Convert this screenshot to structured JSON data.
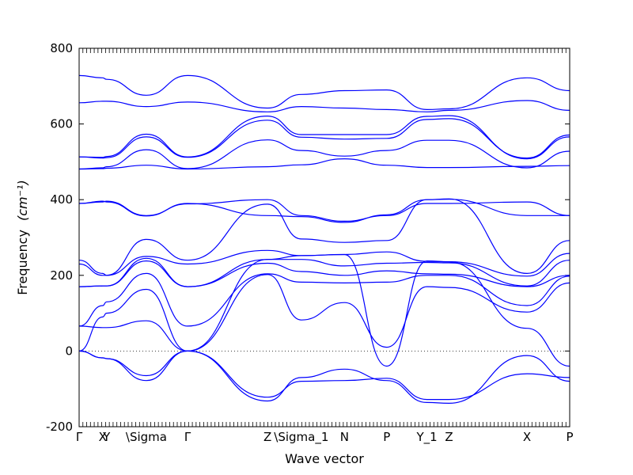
{
  "chart_data": {
    "type": "line",
    "xlabel": "Wave vector",
    "ylabel": "Frequency",
    "ylabel_unit": "(cm⁻¹)",
    "ylim": [
      -200,
      800
    ],
    "yticks": [
      -200,
      0,
      200,
      400,
      600,
      800
    ],
    "xlim": [
      0,
      100
    ],
    "xticks": [
      {
        "label": "Γ",
        "pos": 0
      },
      {
        "label": "X",
        "pos": 4.8
      },
      {
        "label": "Y",
        "pos": 5.6
      },
      {
        "label": "\\Sigma",
        "pos": 13.7
      },
      {
        "label": "Γ",
        "pos": 22.1
      },
      {
        "label": "Z",
        "pos": 38.4
      },
      {
        "label": "\\Sigma_1",
        "pos": 45.3
      },
      {
        "label": "N",
        "pos": 54.1
      },
      {
        "label": "P",
        "pos": 62.7
      },
      {
        "label": "Y_1",
        "pos": 70.9
      },
      {
        "label": "Z",
        "pos": 75.4
      },
      {
        "label": "X",
        "pos": 91.3
      },
      {
        "label": "P",
        "pos": 100
      }
    ],
    "zero_line": true,
    "line_color": "#0000ff",
    "series": [
      {
        "x": [
          0,
          4.8,
          5.6,
          13.7,
          22.1,
          38.4,
          45.3,
          54.1,
          62.7,
          70.9,
          75.4,
          91.3,
          100
        ],
        "y": [
          728,
          722,
          718,
          676,
          728,
          642,
          678,
          688,
          690,
          638,
          640,
          722,
          688
        ]
      },
      {
        "x": [
          0,
          4.8,
          5.6,
          13.7,
          22.1,
          38.4,
          45.3,
          54.1,
          62.7,
          70.9,
          75.4,
          91.3,
          100
        ],
        "y": [
          656,
          660,
          660,
          646,
          658,
          632,
          646,
          642,
          638,
          632,
          636,
          662,
          636
        ]
      },
      {
        "x": [
          0,
          4.8,
          5.6,
          13.7,
          22.1,
          38.4,
          45.3,
          54.1,
          62.7,
          70.9,
          75.4,
          91.3,
          100
        ],
        "y": [
          513,
          512,
          514,
          573,
          513,
          621,
          572,
          572,
          572,
          620,
          622,
          508,
          566
        ]
      },
      {
        "x": [
          0,
          4.8,
          5.6,
          13.7,
          22.1,
          38.4,
          45.3,
          54.1,
          62.7,
          70.9,
          75.4,
          91.3,
          100
        ],
        "y": [
          513,
          510,
          511,
          566,
          512,
          610,
          565,
          560,
          562,
          612,
          614,
          510,
          571
        ]
      },
      {
        "x": [
          0,
          4.8,
          5.6,
          13.7,
          22.1,
          38.4,
          45.3,
          54.1,
          62.7,
          70.9,
          75.4,
          91.3,
          100
        ],
        "y": [
          481,
          484,
          487,
          532,
          482,
          558,
          530,
          515,
          530,
          557,
          557,
          484,
          528
        ]
      },
      {
        "x": [
          0,
          4.8,
          5.6,
          13.7,
          22.1,
          38.4,
          45.3,
          54.1,
          62.7,
          70.9,
          75.4,
          91.3,
          100
        ],
        "y": [
          481,
          482,
          483,
          491,
          481,
          487,
          492,
          508,
          491,
          485,
          485,
          488,
          490
        ]
      },
      {
        "x": [
          0,
          4.8,
          5.6,
          13.7,
          22.1,
          38.4,
          45.3,
          54.1,
          62.7,
          70.9,
          75.4,
          91.3,
          100
        ],
        "y": [
          390,
          396,
          394,
          357,
          390,
          358,
          355,
          340,
          360,
          400,
          401,
          358,
          358
        ]
      },
      {
        "x": [
          0,
          4.8,
          5.6,
          13.7,
          22.1,
          38.4,
          45.3,
          54.1,
          62.7,
          70.9,
          75.4,
          91.3,
          100
        ],
        "y": [
          390,
          394,
          396,
          358,
          389,
          400,
          358,
          343,
          358,
          390,
          390,
          394,
          358
        ]
      },
      {
        "x": [
          0,
          4.8,
          5.6,
          13.7,
          22.1,
          38.4,
          45.3,
          54.1,
          62.7,
          70.9,
          75.4,
          91.3,
          100
        ],
        "y": [
          240,
          205,
          200,
          295,
          240,
          388,
          296,
          287,
          292,
          400,
          402,
          205,
          292
        ]
      },
      {
        "x": [
          0,
          4.8,
          5.6,
          13.7,
          22.1,
          38.4,
          45.3,
          54.1,
          62.7,
          70.9,
          75.4,
          91.3,
          100
        ],
        "y": [
          230,
          200,
          200,
          250,
          230,
          266,
          252,
          255,
          262,
          237,
          236,
          198,
          258
        ]
      },
      {
        "x": [
          0,
          4.8,
          5.6,
          13.7,
          22.1,
          38.4,
          45.3,
          54.1,
          62.7,
          70.9,
          75.4,
          91.3,
          100
        ],
        "y": [
          170,
          172,
          172,
          245,
          170,
          242,
          242,
          225,
          232,
          234,
          233,
          172,
          240
        ]
      },
      {
        "x": [
          0,
          4.8,
          5.6,
          13.7,
          22.1,
          38.4,
          45.3,
          54.1,
          62.7,
          70.9,
          75.4,
          91.3,
          100
        ],
        "y": [
          170,
          172,
          172,
          238,
          170,
          232,
          210,
          200,
          212,
          204,
          203,
          170,
          200
        ]
      },
      {
        "x": [
          0,
          4.8,
          5.6,
          13.7,
          22.1,
          38.4,
          45.3,
          54.1,
          62.7,
          70.9,
          75.4,
          91.3,
          100
        ],
        "y": [
          66,
          120,
          130,
          205,
          66,
          204,
          182,
          180,
          182,
          200,
          200,
          120,
          198
        ]
      },
      {
        "x": [
          0,
          4.8,
          5.6,
          13.7,
          22.1,
          38.4,
          45.3,
          54.1,
          62.7,
          70.9,
          75.4,
          91.3,
          100
        ],
        "y": [
          0,
          90,
          100,
          163,
          0,
          202,
          82,
          128,
          10,
          170,
          168,
          103,
          180
        ]
      },
      {
        "x": [
          0,
          4.8,
          5.6,
          13.7,
          22.1,
          38.4,
          45.3,
          54.1,
          62.7,
          70.9,
          75.4,
          91.3,
          100
        ],
        "y": [
          66,
          62,
          62,
          80,
          0,
          242,
          252,
          255,
          -40,
          238,
          236,
          60,
          -40
        ]
      },
      {
        "x": [
          0,
          4.8,
          5.6,
          13.7,
          22.1,
          38.4,
          45.3,
          54.1,
          62.7,
          70.9,
          75.4,
          91.3,
          100
        ],
        "y": [
          0,
          -18,
          -20,
          -65,
          0,
          -122,
          -80,
          -78,
          -72,
          -128,
          -128,
          -60,
          -70
        ]
      },
      {
        "x": [
          0,
          4.8,
          5.6,
          13.7,
          22.1,
          38.4,
          45.3,
          54.1,
          62.7,
          70.9,
          75.4,
          91.3,
          100
        ],
        "y": [
          0,
          -18,
          -20,
          -78,
          0,
          -132,
          -70,
          -48,
          -78,
          -136,
          -138,
          -12,
          -80
        ]
      }
    ]
  }
}
